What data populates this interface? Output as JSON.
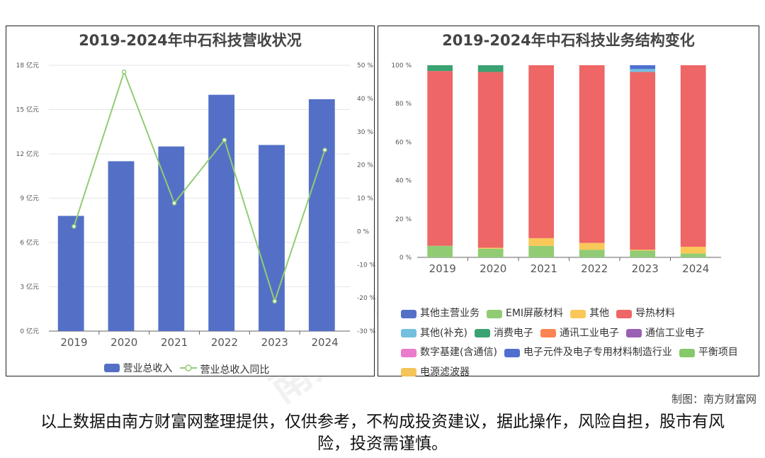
{
  "chart_data": [
    {
      "type": "bar",
      "title": "2019-2024年中石科技营收状况",
      "categories": [
        "2019",
        "2020",
        "2021",
        "2022",
        "2023",
        "2024"
      ],
      "series": [
        {
          "name": "营业总收入",
          "kind": "bar",
          "axis": "left",
          "color": "#5470c6",
          "values": [
            7.8,
            11.5,
            12.5,
            16.0,
            12.6,
            15.7
          ]
        },
        {
          "name": "营业总收入同比",
          "kind": "line",
          "axis": "right",
          "color": "#91cc75",
          "values": [
            1.5,
            48.0,
            8.5,
            27.5,
            -21.0,
            24.5
          ]
        }
      ],
      "left_ticks": [
        "0 亿元",
        "3 亿元",
        "6 亿元",
        "9 亿元",
        "12 亿元",
        "15 亿元",
        "18 亿元"
      ],
      "right_ticks": [
        "-30 %",
        "-20 %",
        "-10 %",
        "0 %",
        "10 %",
        "20 %",
        "30 %",
        "40 %",
        "50 %"
      ],
      "ylim_left": [
        0,
        18
      ],
      "ylim_right": [
        -30,
        50
      ],
      "legend_position": "bottom"
    },
    {
      "type": "bar",
      "stacked": true,
      "title": "2019-2024年中石科技业务结构变化",
      "categories": [
        "2019",
        "2020",
        "2021",
        "2022",
        "2023",
        "2024"
      ],
      "y_ticks": [
        "0 %",
        "20 %",
        "40 %",
        "60 %",
        "80 %",
        "100 %"
      ],
      "ylim": [
        0,
        100
      ],
      "series": [
        {
          "name": "其他主营业务",
          "color": "#5470c6",
          "values": [
            0,
            0,
            0,
            0,
            0,
            0
          ]
        },
        {
          "name": "EMI屏蔽材料",
          "color": "#91cc75",
          "values": [
            6,
            4.5,
            6,
            4,
            3.5,
            2
          ]
        },
        {
          "name": "其他",
          "color": "#fac858",
          "values": [
            0,
            0.5,
            4,
            3.5,
            0.5,
            3.5
          ]
        },
        {
          "name": "导热材料",
          "color": "#ee6666",
          "values": [
            91,
            91.5,
            90,
            92.5,
            92.5,
            94.5
          ]
        },
        {
          "name": "其他(补充)",
          "color": "#73c0de",
          "values": [
            0,
            0,
            0,
            0,
            1.5,
            0
          ]
        },
        {
          "name": "消费电子",
          "color": "#3ba272",
          "values": [
            3,
            3.5,
            0,
            0,
            0,
            0
          ]
        },
        {
          "name": "通讯工业电子",
          "color": "#fc8452",
          "values": [
            0,
            0,
            0,
            0,
            0,
            0
          ]
        },
        {
          "name": "通信工业电子",
          "color": "#9a60b4",
          "values": [
            0,
            0,
            0,
            0,
            0,
            0
          ]
        },
        {
          "name": "数字基建(含通信)",
          "color": "#ea7ccc",
          "values": [
            0,
            0,
            0,
            0,
            0,
            0
          ]
        },
        {
          "name": "电子元件及电子专用材料制造行业",
          "color": "#4f6fcf",
          "values": [
            0,
            0,
            0,
            0,
            2,
            0
          ]
        },
        {
          "name": "平衡项目",
          "color": "#86c96a",
          "values": [
            0,
            0,
            0,
            0,
            0,
            0
          ]
        },
        {
          "name": "电源滤波器",
          "color": "#f5c45a",
          "values": [
            0,
            0,
            0,
            0,
            0,
            0
          ]
        }
      ],
      "legend_position": "bottom"
    }
  ],
  "footer": {
    "credit": "制图：南方财富网",
    "disclaimer": "以上数据由南方财富网整理提供，仅供参考，不构成投资建议，据此操作，风险自担，股市有风险，投资需谨慎。"
  },
  "watermark": {
    "text_cn": "南方财富网",
    "text_en": "Southmoney.com"
  }
}
